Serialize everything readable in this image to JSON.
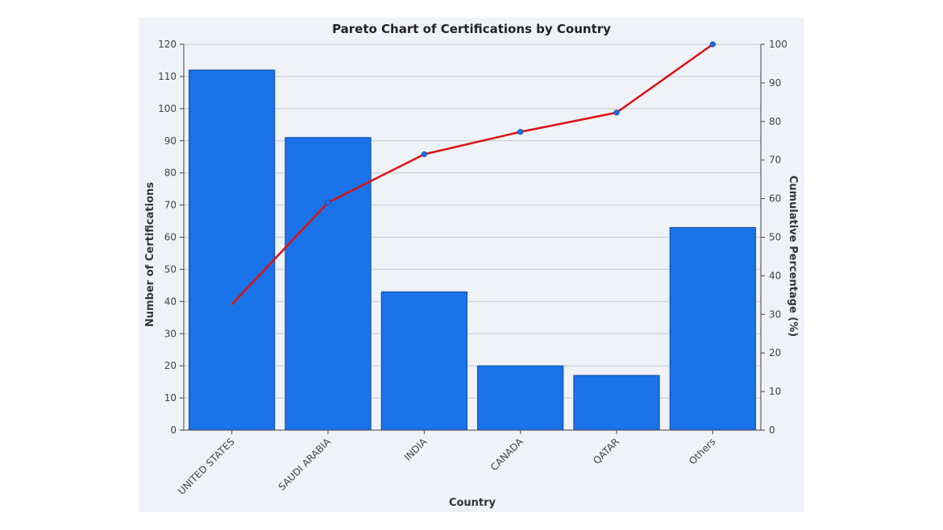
{
  "chart_data": {
    "type": "bar",
    "title": "Pareto Chart of Certifications by Country",
    "xlabel": "Country",
    "ylabel": "Number of Certifications",
    "y2label": "Cumulative Percentage (%)",
    "categories": [
      "UNITED STATES",
      "SAUDI ARABIA",
      "INDIA",
      "CANADA",
      "QATAR",
      "Others"
    ],
    "series": [
      {
        "type": "bar",
        "values": [
          112,
          91,
          43,
          20,
          17,
          63
        ]
      },
      {
        "type": "line",
        "axis": "right",
        "values": [
          32.6,
          59.0,
          71.5,
          77.3,
          82.3,
          100.0
        ]
      }
    ],
    "ylim": [
      0,
      120
    ],
    "y_ticks": [
      0,
      10,
      20,
      30,
      40,
      50,
      60,
      70,
      80,
      90,
      100,
      110,
      120
    ],
    "y2lim": [
      0,
      100
    ],
    "y2_ticks": [
      0,
      10,
      20,
      30,
      40,
      50,
      60,
      70,
      80,
      90,
      100
    ],
    "grid": true,
    "legend": "none",
    "colors": {
      "bar_fill": "#1a73e8",
      "bar_edge": "#0d47a1",
      "line": "#dd1111",
      "marker": "#1a73e8",
      "background": "#eff2f7"
    }
  }
}
